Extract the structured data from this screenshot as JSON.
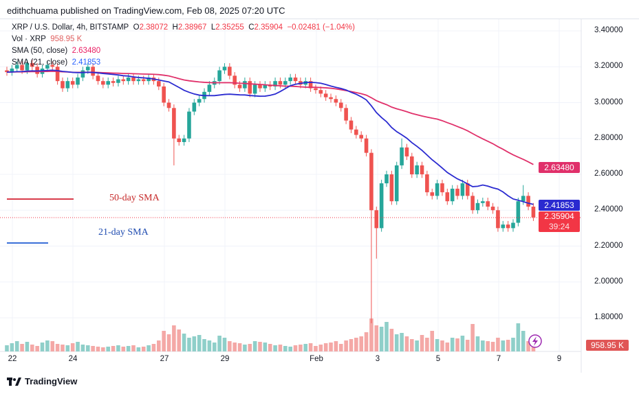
{
  "header": {
    "published": "edithchuama published on TradingView.com, Feb 08, 2025 07:20 UTC"
  },
  "legend": {
    "symbol": "XRP / U.S. Dollar, 4h, BITSTAMP",
    "o_label": "O",
    "o": "2.38072",
    "h_label": "H",
    "h": "2.38967",
    "l_label": "L",
    "l": "2.35255",
    "c_label": "C",
    "c": "2.35904",
    "change": "−0.02481 (−1.04%)",
    "vol_label": "Vol · XRP",
    "vol": "958.95 K",
    "sma50_label": "SMA (50, close)",
    "sma50": "2.63480",
    "sma21_label": "SMA (21, close)",
    "sma21": "2.41853"
  },
  "annotations": {
    "sma50": "50-day SMA",
    "sma21": "21-day SMA"
  },
  "price_tags": {
    "sma50": "2.63480",
    "sma21": "2.41853",
    "last": "2.35904",
    "countdown": "39:24",
    "volume": "958.95 K"
  },
  "colors": {
    "up": "#26a69a",
    "down": "#ef5350",
    "sma50": "#e0306a",
    "sma21": "#2a2ad0",
    "upvol": "#8fcfc9",
    "downvol": "#f4a8a6"
  },
  "brand": "TradingView",
  "chart_data": {
    "type": "candlestick",
    "interval": "4h",
    "ylim": [
      1.7,
      3.45
    ],
    "y_ticks": [
      "3.40000",
      "3.20000",
      "3.00000",
      "2.80000",
      "2.60000",
      "2.40000",
      "2.20000",
      "2.00000",
      "1.80000"
    ],
    "x_ticks": [
      "22",
      "24",
      "27",
      "29",
      "Feb",
      "3",
      "5",
      "7",
      "9"
    ],
    "closes": [
      3.17,
      3.19,
      3.21,
      3.18,
      3.22,
      3.2,
      3.16,
      3.19,
      3.21,
      3.2,
      3.12,
      3.08,
      3.12,
      3.1,
      3.14,
      3.18,
      3.2,
      3.15,
      3.12,
      3.1,
      3.12,
      3.11,
      3.13,
      3.12,
      3.14,
      3.12,
      3.13,
      3.12,
      3.14,
      3.12,
      3.09,
      3.0,
      2.97,
      2.8,
      2.78,
      2.8,
      2.95,
      3.0,
      3.02,
      3.06,
      3.1,
      3.12,
      3.18,
      3.2,
      3.15,
      3.1,
      3.08,
      3.12,
      3.05,
      3.1,
      3.08,
      3.1,
      3.09,
      3.12,
      3.1,
      3.12,
      3.14,
      3.12,
      3.1,
      3.12,
      3.08,
      3.07,
      3.05,
      3.03,
      3.02,
      3.0,
      2.97,
      2.9,
      2.85,
      2.82,
      2.8,
      2.72,
      2.4,
      2.3,
      2.55,
      2.6,
      2.45,
      2.65,
      2.75,
      2.7,
      2.6,
      2.65,
      2.6,
      2.5,
      2.48,
      2.55,
      2.5,
      2.45,
      2.52,
      2.48,
      2.55,
      2.48,
      2.4,
      2.44,
      2.45,
      2.42,
      2.4,
      2.3,
      2.32,
      2.3,
      2.33,
      2.45,
      2.48,
      2.42,
      2.36
    ],
    "wick_extremes": [
      {
        "index": 33,
        "low": 2.65
      },
      {
        "index": 72,
        "low": 1.77
      },
      {
        "index": 73,
        "low": 2.13
      },
      {
        "index": 78,
        "high": 2.8
      },
      {
        "index": 102,
        "high": 2.54
      }
    ],
    "volumes": [
      900,
      1200,
      1500,
      1100,
      1400,
      1000,
      800,
      1300,
      1600,
      1500,
      1100,
      1000,
      900,
      1200,
      1400,
      1000,
      900,
      800,
      700,
      600,
      700,
      800,
      900,
      700,
      800,
      900,
      600,
      700,
      900,
      1100,
      1600,
      3000,
      2500,
      3800,
      3200,
      2600,
      2000,
      2200,
      2400,
      1800,
      1600,
      1300,
      2300,
      2000,
      1500,
      1300,
      1200,
      1000,
      1100,
      1500,
      1400,
      1300,
      1100,
      900,
      1000,
      800,
      700,
      900,
      1000,
      1100,
      1200,
      800,
      1000,
      1200,
      1300,
      1500,
      1100,
      1600,
      1800,
      2000,
      2200,
      2800,
      4800,
      3800,
      3600,
      4300,
      3300,
      2500,
      2700,
      2200,
      1800,
      1600,
      2400,
      2000,
      3000,
      1800,
      1600,
      1300,
      2000,
      1900,
      2300,
      1700,
      4000,
      2200,
      1600,
      1500,
      1400,
      2000,
      1600,
      1700,
      2000,
      4100,
      3000,
      1500,
      958.95
    ]
  }
}
